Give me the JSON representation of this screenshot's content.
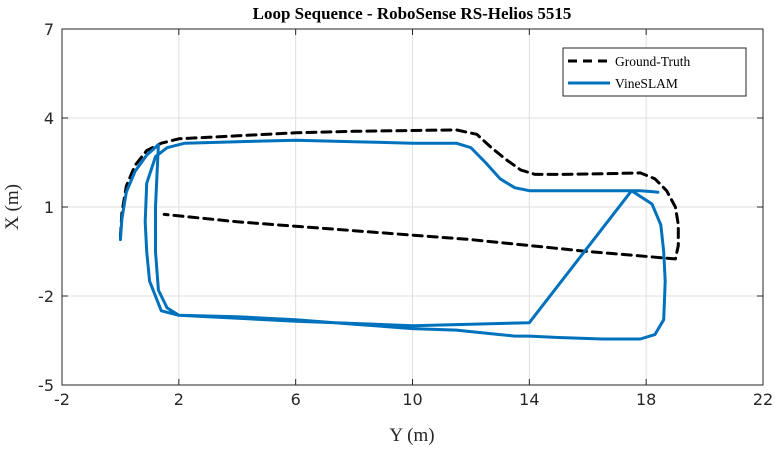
{
  "chart_data": {
    "type": "line",
    "title": "Loop Sequence - RoboSense RS-Helios 5515",
    "xlabel": "Y (m)",
    "ylabel": "X (m)",
    "xlim": [
      -2,
      22
    ],
    "ylim": [
      -5,
      7
    ],
    "xticks": [
      "-2",
      "2",
      "6",
      "10",
      "14",
      "18",
      "22"
    ],
    "yticks": [
      "-5",
      "-2",
      "1",
      "4",
      "7"
    ],
    "grid": true,
    "legend_position": "top-right",
    "series": [
      {
        "name": "Ground-Truth",
        "color": "#000000",
        "style": "dashed",
        "x": [
          0.0,
          0.05,
          0.2,
          0.5,
          0.9,
          1.4,
          2.0,
          4.0,
          6.0,
          8.0,
          10.0,
          11.5,
          12.2,
          12.7,
          13.2,
          13.7,
          14.2,
          15.0,
          16.5,
          17.8,
          18.3,
          18.7,
          19.0,
          19.1,
          19.1,
          19.0,
          16.0,
          12.0,
          8.0,
          4.0,
          1.5
        ],
        "y": [
          0.0,
          0.8,
          1.7,
          2.4,
          2.9,
          3.15,
          3.3,
          3.4,
          3.5,
          3.55,
          3.58,
          3.6,
          3.45,
          3.0,
          2.6,
          2.25,
          2.1,
          2.1,
          2.12,
          2.15,
          1.95,
          1.55,
          1.0,
          0.4,
          -0.3,
          -0.75,
          -0.5,
          -0.1,
          0.2,
          0.5,
          0.75
        ]
      },
      {
        "name": "VineSLAM",
        "color": "#0072BD",
        "style": "solid",
        "x": [
          0.0,
          0.05,
          0.2,
          0.5,
          0.9,
          1.3,
          1.2,
          1.2,
          1.3,
          1.6,
          2.0,
          4.0,
          6.0,
          8.0,
          10.0,
          11.5,
          12.0,
          12.5,
          13.0,
          13.5,
          14.0,
          15.0,
          16.5,
          17.8,
          18.3,
          18.6,
          18.65,
          18.6,
          18.5,
          18.2,
          17.5,
          14.0,
          10.0,
          6.0,
          2.0,
          1.4,
          1.0,
          0.9,
          0.85,
          0.9,
          1.2,
          1.6,
          2.2,
          4.0,
          6.0,
          8.0,
          10.0,
          11.5,
          12.0,
          12.5,
          13.0,
          13.5,
          14.0,
          15.0,
          16.5,
          17.8,
          18.2,
          18.4
        ],
        "y": [
          -0.1,
          0.6,
          1.5,
          2.2,
          2.75,
          3.1,
          1.0,
          -0.5,
          -1.8,
          -2.4,
          -2.65,
          -2.7,
          -2.8,
          -2.95,
          -3.1,
          -3.15,
          -3.2,
          -3.25,
          -3.3,
          -3.35,
          -3.35,
          -3.4,
          -3.45,
          -3.45,
          -3.3,
          -2.8,
          -1.5,
          -0.5,
          0.4,
          1.1,
          1.55,
          -2.9,
          -3.0,
          -2.85,
          -2.65,
          -2.5,
          -1.5,
          -0.5,
          0.5,
          1.8,
          2.7,
          3.0,
          3.15,
          3.2,
          3.25,
          3.2,
          3.15,
          3.15,
          3.0,
          2.5,
          1.95,
          1.65,
          1.55,
          1.55,
          1.55,
          1.55,
          1.52,
          1.5
        ]
      }
    ]
  }
}
